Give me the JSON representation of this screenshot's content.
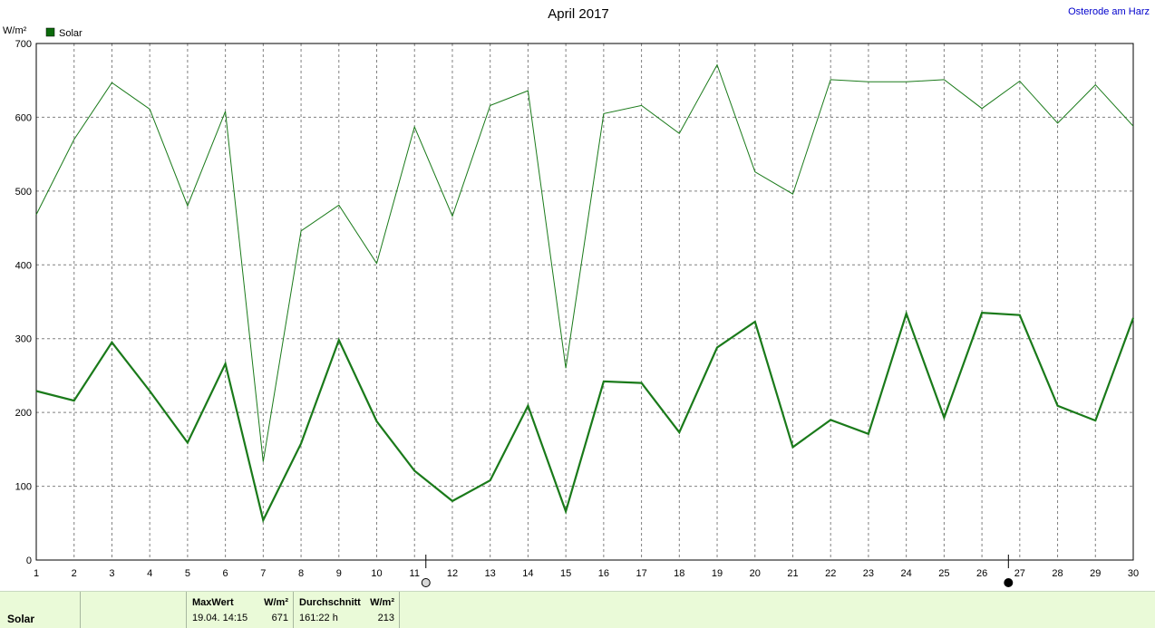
{
  "chart_data": {
    "type": "line",
    "title": "April 2017",
    "location": "Osterode am Harz",
    "ylabel": "W/m²",
    "ylim": [
      0,
      700
    ],
    "yticks": [
      0,
      100,
      200,
      300,
      400,
      500,
      600,
      700
    ],
    "x": [
      1,
      2,
      3,
      4,
      5,
      6,
      7,
      8,
      9,
      10,
      11,
      12,
      13,
      14,
      15,
      16,
      17,
      18,
      19,
      20,
      21,
      22,
      23,
      24,
      25,
      26,
      27,
      28,
      29,
      30
    ],
    "grid": true,
    "legend": "top-left",
    "series": [
      {
        "name": "Solar",
        "style": "max",
        "values": [
          468,
          570,
          647,
          611,
          480,
          608,
          133,
          446,
          481,
          402,
          587,
          466,
          616,
          636,
          260,
          605,
          616,
          578,
          671,
          526,
          496,
          651,
          648,
          648,
          651,
          612,
          649,
          592,
          644,
          588
        ]
      },
      {
        "name": "",
        "style": "avg",
        "values": [
          229,
          216,
          295,
          229,
          159,
          266,
          54,
          158,
          298,
          188,
          121,
          80,
          108,
          209,
          66,
          242,
          240,
          173,
          288,
          323,
          153,
          190,
          171,
          334,
          193,
          335,
          332,
          209,
          189,
          328
        ]
      }
    ],
    "colors": {
      "line": "#1a7a1a",
      "grid": "#808080",
      "title_right": "#0000cc",
      "legend_swatch": "#0a6a0a"
    },
    "markers": [
      {
        "x": 11.3,
        "icon": "new-moon-circle-icon"
      },
      {
        "x": 26.7,
        "icon": "full-moon-dot-icon"
      }
    ]
  },
  "footer": {
    "label": "Solar",
    "maxwert_header": "MaxWert",
    "maxwert_unit": "W/m²",
    "maxwert_date": "19.04.  14:15",
    "maxwert_value": "671",
    "avg_header": "Durchschnitt",
    "avg_unit": "W/m²",
    "avg_time": "161:22 h",
    "avg_value": "213"
  }
}
